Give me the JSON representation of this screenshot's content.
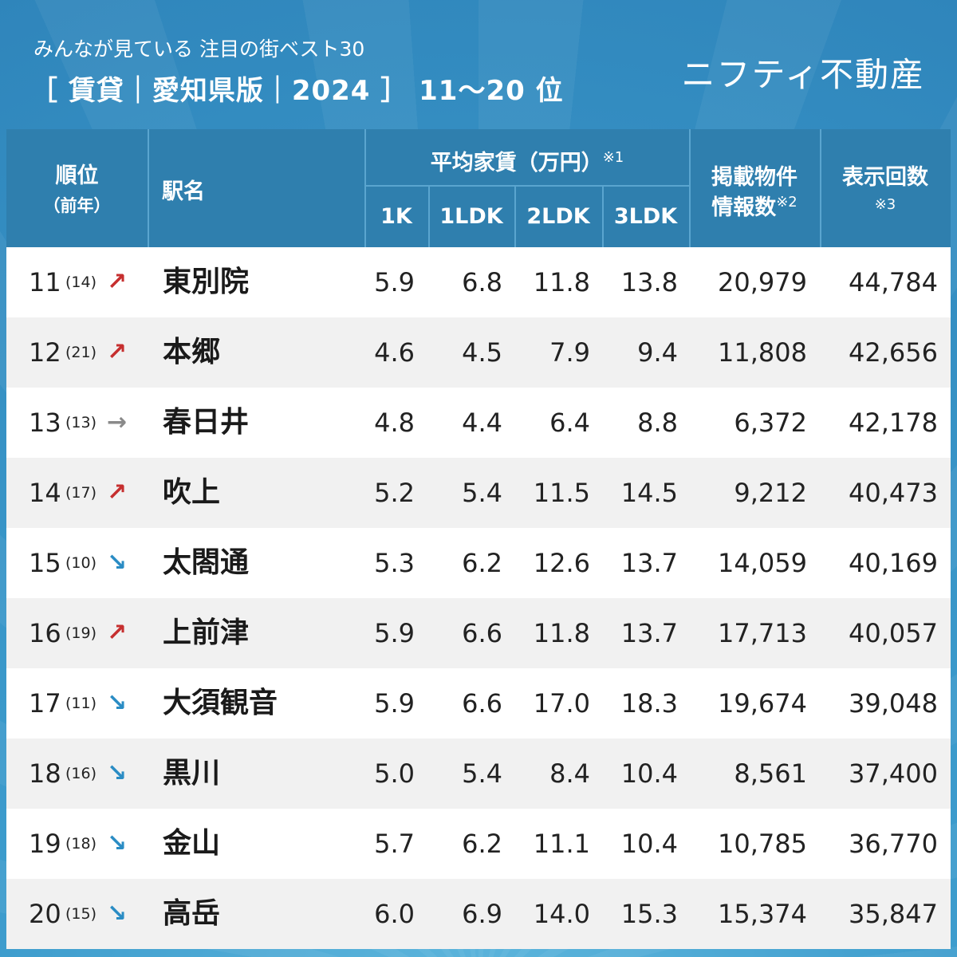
{
  "header": {
    "subtitle": "みんなが見ている 注目の街ベスト30",
    "title": "［ 賃貸｜愛知県版｜2024 ］  11〜20 位",
    "brand": "ニフティ不動産"
  },
  "table_header": {
    "rank_line1": "順位",
    "rank_line2": "（前年）",
    "station": "駅名",
    "rent_group": "平均家賃（万円）",
    "rent_note": "※1",
    "col_1k": "1K",
    "col_1ldk": "1LDK",
    "col_2ldk": "2LDK",
    "col_3ldk": "3LDK",
    "listings_line1": "掲載物件",
    "listings_line2": "情報数",
    "listings_note": "※2",
    "views_line1": "表示回数",
    "views_note": "※3"
  },
  "rows": [
    {
      "rank": "11",
      "prev": "(14)",
      "trend": "up",
      "arrow": "↗",
      "station": "東別院",
      "k1": "5.9",
      "ldk1": "6.8",
      "ldk2": "11.8",
      "ldk3": "13.8",
      "listings": "20,979",
      "views": "44,784"
    },
    {
      "rank": "12",
      "prev": "(21)",
      "trend": "up",
      "arrow": "↗",
      "station": "本郷",
      "k1": "4.6",
      "ldk1": "4.5",
      "ldk2": "7.9",
      "ldk3": "9.4",
      "listings": "11,808",
      "views": "42,656"
    },
    {
      "rank": "13",
      "prev": "(13)",
      "trend": "flat",
      "arrow": "→",
      "station": "春日井",
      "k1": "4.8",
      "ldk1": "4.4",
      "ldk2": "6.4",
      "ldk3": "8.8",
      "listings": "6,372",
      "views": "42,178"
    },
    {
      "rank": "14",
      "prev": "(17)",
      "trend": "up",
      "arrow": "↗",
      "station": "吹上",
      "k1": "5.2",
      "ldk1": "5.4",
      "ldk2": "11.5",
      "ldk3": "14.5",
      "listings": "9,212",
      "views": "40,473"
    },
    {
      "rank": "15",
      "prev": "(10)",
      "trend": "down",
      "arrow": "↘",
      "station": "太閤通",
      "k1": "5.3",
      "ldk1": "6.2",
      "ldk2": "12.6",
      "ldk3": "13.7",
      "listings": "14,059",
      "views": "40,169"
    },
    {
      "rank": "16",
      "prev": "(19)",
      "trend": "up",
      "arrow": "↗",
      "station": "上前津",
      "k1": "5.9",
      "ldk1": "6.6",
      "ldk2": "11.8",
      "ldk3": "13.7",
      "listings": "17,713",
      "views": "40,057"
    },
    {
      "rank": "17",
      "prev": "(11)",
      "trend": "down",
      "arrow": "↘",
      "station": "大須観音",
      "k1": "5.9",
      "ldk1": "6.6",
      "ldk2": "17.0",
      "ldk3": "18.3",
      "listings": "19,674",
      "views": "39,048"
    },
    {
      "rank": "18",
      "prev": "(16)",
      "trend": "down",
      "arrow": "↘",
      "station": "黒川",
      "k1": "5.0",
      "ldk1": "5.4",
      "ldk2": "8.4",
      "ldk3": "10.4",
      "listings": "8,561",
      "views": "37,400"
    },
    {
      "rank": "19",
      "prev": "(18)",
      "trend": "down",
      "arrow": "↘",
      "station": "金山",
      "k1": "5.7",
      "ldk1": "6.2",
      "ldk2": "11.1",
      "ldk3": "10.4",
      "listings": "10,785",
      "views": "36,770"
    },
    {
      "rank": "20",
      "prev": "(15)",
      "trend": "down",
      "arrow": "↘",
      "station": "高岳",
      "k1": "6.0",
      "ldk1": "6.9",
      "ldk2": "14.0",
      "ldk3": "15.3",
      "listings": "15,374",
      "views": "35,847"
    }
  ],
  "colors": {
    "up": "#c62f2f",
    "flat": "#8a8a8a",
    "down": "#2a8cc4",
    "header_bg": "#2f7fae",
    "background": "#3f9ac9"
  }
}
